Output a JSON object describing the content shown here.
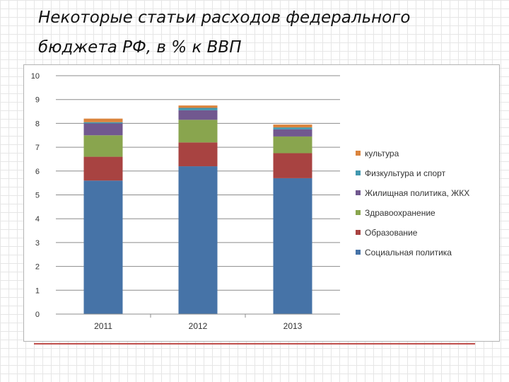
{
  "title": "Некоторые статьи расходов федерального бюджета РФ, в % к ВВП",
  "chart_data": {
    "type": "bar",
    "stacked": true,
    "categories": [
      "2011",
      "2012",
      "2013"
    ],
    "ylim": [
      0,
      10
    ],
    "yticks": [
      "0",
      "1",
      "2",
      "3",
      "4",
      "5",
      "6",
      "7",
      "8",
      "9",
      "10"
    ],
    "grid": true,
    "legend_position": "right",
    "series": [
      {
        "name": "Социальная политика",
        "color": "#4673a7",
        "values": [
          5.6,
          6.2,
          5.7
        ]
      },
      {
        "name": "Образование",
        "color": "#a84341",
        "values": [
          1.0,
          1.0,
          1.05
        ]
      },
      {
        "name": "Здравоохранение",
        "color": "#89a54e",
        "values": [
          0.9,
          0.95,
          0.7
        ]
      },
      {
        "name": "Жилищная политика, ЖКХ",
        "color": "#71588f",
        "values": [
          0.5,
          0.4,
          0.3
        ]
      },
      {
        "name": "Физкультура и спорт",
        "color": "#4198af",
        "values": [
          0.05,
          0.1,
          0.08
        ]
      },
      {
        "name": "культура",
        "color": "#db843d",
        "values": [
          0.15,
          0.1,
          0.12
        ]
      }
    ]
  }
}
